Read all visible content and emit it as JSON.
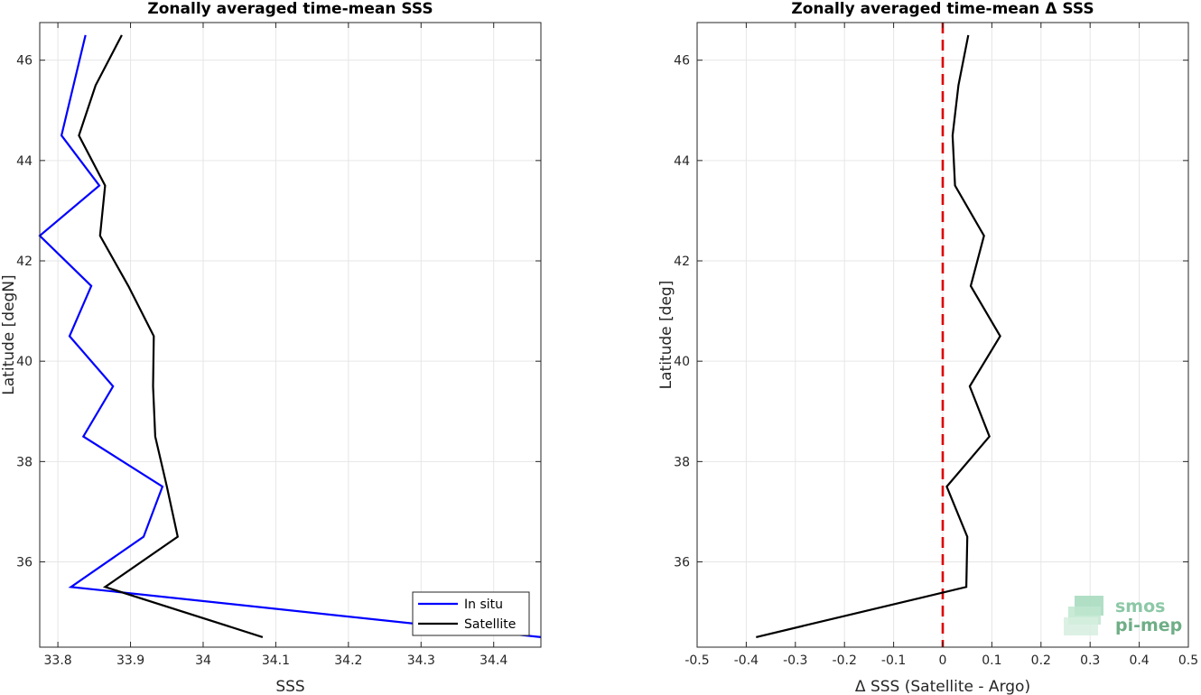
{
  "chart_data": [
    {
      "type": "line",
      "title": "Zonally averaged time-mean SSS",
      "xlabel": "SSS",
      "ylabel": "Latitude [degN]",
      "xlim": [
        33.775,
        34.465
      ],
      "ylim": [
        34.3,
        46.75
      ],
      "xticks": [
        33.8,
        33.9,
        34,
        34.1,
        34.2,
        34.3,
        34.4
      ],
      "xtick_labels": [
        "33.8",
        "33.9",
        "34",
        "34.1",
        "34.2",
        "34.3",
        "34.4"
      ],
      "yticks": [
        36,
        38,
        40,
        42,
        44,
        46
      ],
      "ytick_labels": [
        "36",
        "38",
        "40",
        "42",
        "44",
        "46"
      ],
      "grid": true,
      "legend": "bottom-right",
      "series": [
        {
          "name": "In situ",
          "color": "#0000ff",
          "x": [
            34.465,
            33.818,
            33.918,
            33.944,
            33.835,
            33.876,
            33.816,
            33.846,
            33.775,
            33.857,
            33.805,
            33.838
          ],
          "y": [
            34.5,
            35.5,
            36.5,
            37.5,
            38.5,
            39.5,
            40.5,
            41.5,
            42.5,
            43.5,
            44.5,
            46.5
          ]
        },
        {
          "name": "Satellite",
          "color": "#000000",
          "x": [
            34.082,
            33.865,
            33.965,
            33.95,
            33.934,
            33.931,
            33.932,
            33.897,
            33.858,
            33.865,
            33.829,
            33.852,
            33.888
          ],
          "y": [
            34.5,
            35.5,
            36.5,
            37.5,
            38.5,
            39.5,
            40.5,
            41.5,
            42.5,
            43.5,
            44.5,
            45.5,
            46.5
          ]
        }
      ]
    },
    {
      "type": "line",
      "title": "Zonally averaged time-mean Δ SSS",
      "xlabel": "Δ SSS (Satellite - Argo)",
      "ylabel": "Latitude [deg]",
      "xlim": [
        -0.5,
        0.5
      ],
      "ylim": [
        34.3,
        46.75
      ],
      "xticks": [
        -0.5,
        -0.4,
        -0.3,
        -0.2,
        -0.1,
        0,
        0.1,
        0.2,
        0.3,
        0.4,
        0.5
      ],
      "xtick_labels": [
        "-0.5",
        "-0.4",
        "-0.3",
        "-0.2",
        "-0.1",
        "0",
        "0.1",
        "0.2",
        "0.3",
        "0.4",
        "0.5"
      ],
      "yticks": [
        36,
        38,
        40,
        42,
        44,
        46
      ],
      "ytick_labels": [
        "36",
        "38",
        "40",
        "42",
        "44",
        "46"
      ],
      "grid": true,
      "reference_line": {
        "x": 0,
        "color": "#dd0000",
        "style": "dashed"
      },
      "series": [
        {
          "color": "#000000",
          "x": [
            -0.38,
            0.048,
            0.05,
            0.008,
            0.095,
            0.055,
            0.117,
            0.057,
            0.084,
            0.025,
            0.02,
            0.032,
            0.052
          ],
          "y": [
            34.5,
            35.5,
            36.5,
            37.5,
            38.5,
            39.5,
            40.5,
            41.5,
            42.5,
            43.5,
            44.5,
            45.5,
            46.5
          ]
        }
      ]
    }
  ],
  "logo": {
    "line1": "smos",
    "line2": "pi-mep"
  }
}
